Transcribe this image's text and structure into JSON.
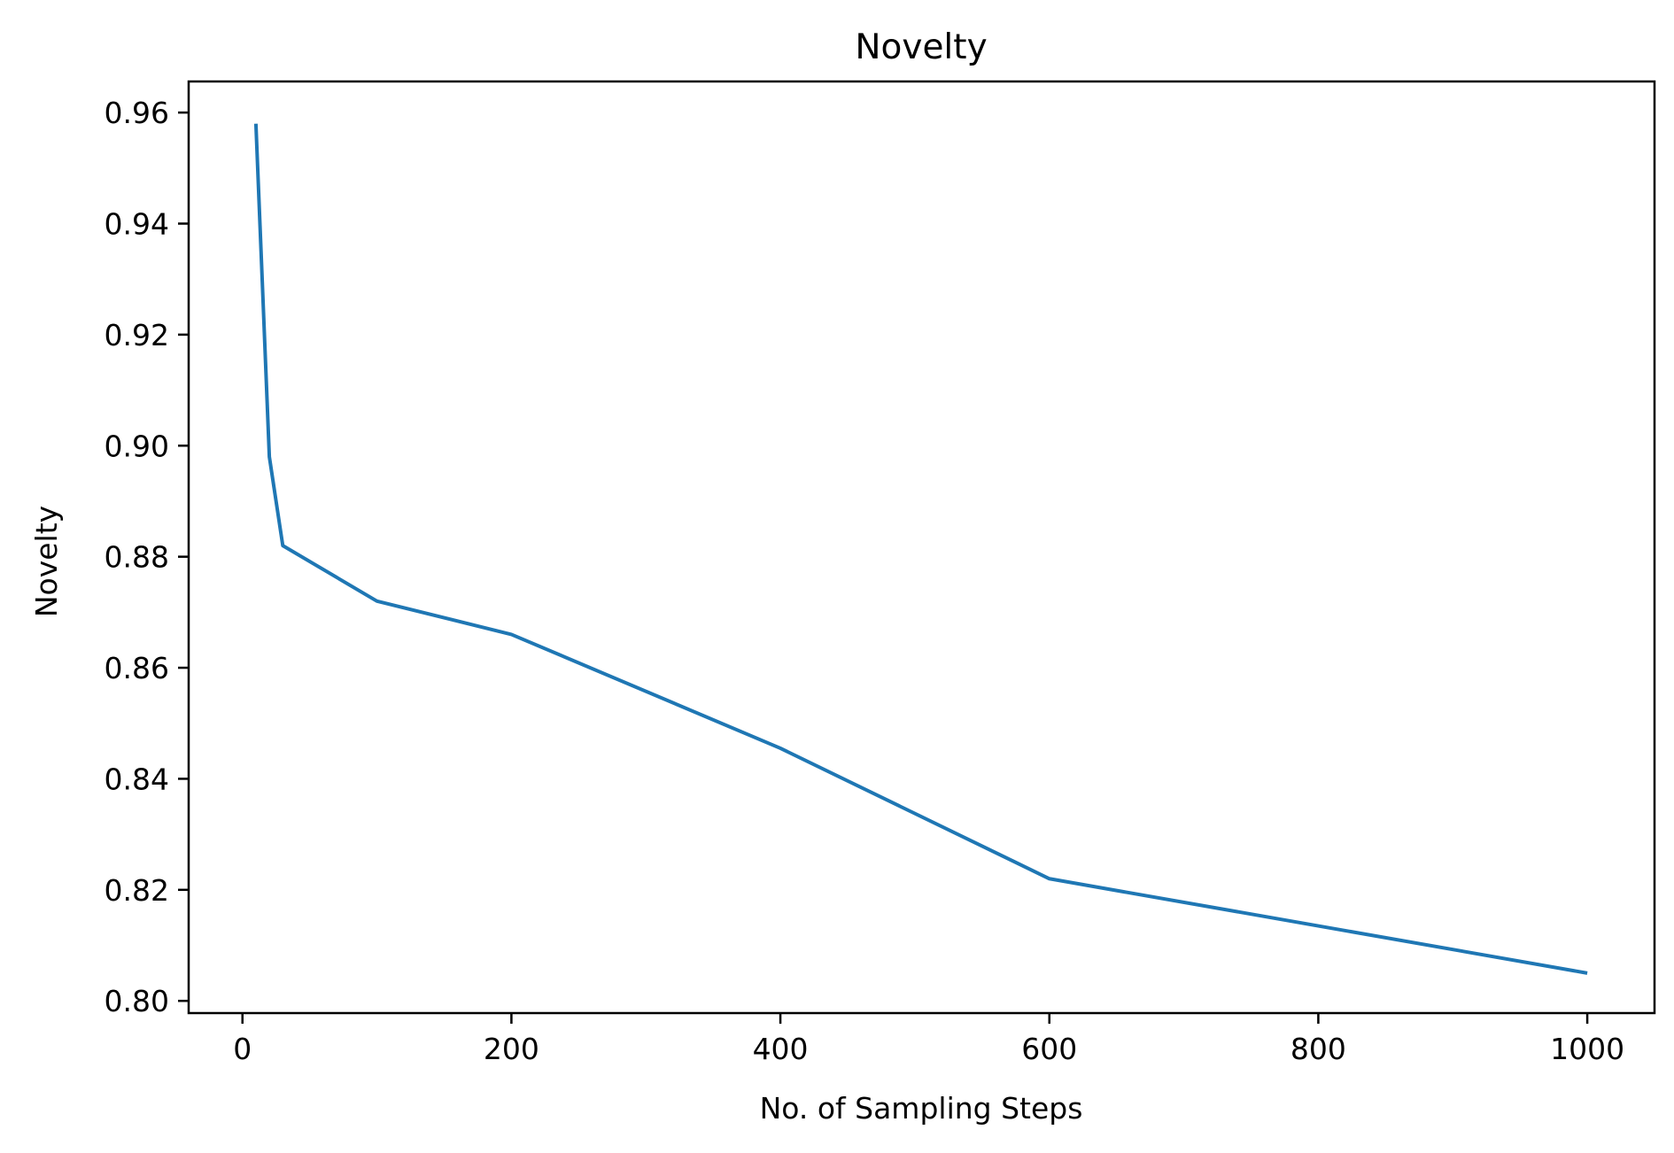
{
  "chart_data": {
    "type": "line",
    "title": "Novelty",
    "xlabel": "No. of Sampling Steps",
    "ylabel": "Novelty",
    "xlim": [
      -40,
      1050
    ],
    "ylim": [
      0.7978,
      0.9656
    ],
    "xticks": [
      0,
      200,
      400,
      600,
      800,
      1000
    ],
    "xtick_labels": [
      "0",
      "200",
      "400",
      "600",
      "800",
      "1000"
    ],
    "yticks": [
      0.8,
      0.82,
      0.84,
      0.86,
      0.88,
      0.9,
      0.92,
      0.94,
      0.96
    ],
    "ytick_labels": [
      "0.80",
      "0.82",
      "0.84",
      "0.86",
      "0.88",
      "0.90",
      "0.92",
      "0.94",
      "0.96"
    ],
    "grid": false,
    "legend": null,
    "series": [
      {
        "color": "#1f77b4",
        "x": [
          10,
          20,
          30,
          100,
          200,
          400,
          600,
          1000
        ],
        "values": [
          0.958,
          0.898,
          0.882,
          0.872,
          0.866,
          0.8455,
          0.822,
          0.805
        ]
      }
    ]
  }
}
